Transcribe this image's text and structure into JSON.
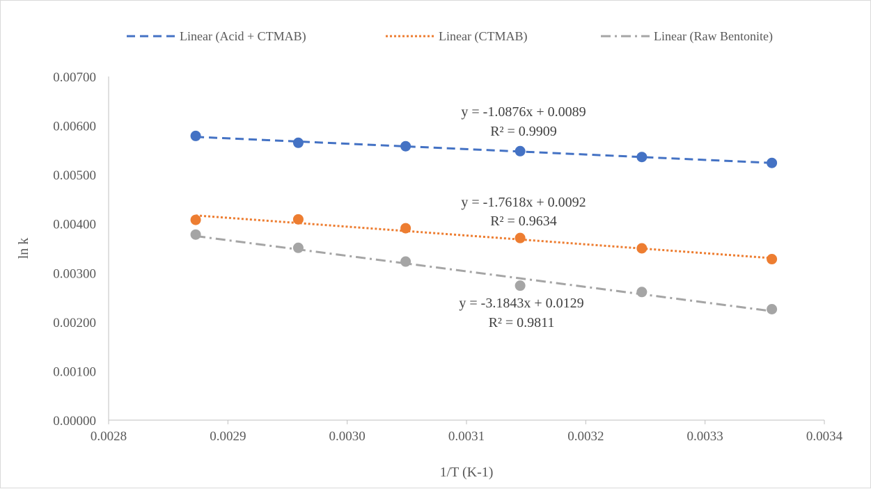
{
  "chart_data": {
    "type": "scatter",
    "title": "",
    "xlabel": "1/T (K-1)",
    "ylabel": "ln k",
    "xlim": [
      0.0028,
      0.0034
    ],
    "ylim": [
      0.0,
      0.007
    ],
    "x_ticks": [
      "0.0028",
      "0.0029",
      "0.0030",
      "0.0031",
      "0.0032",
      "0.0033",
      "0.0034"
    ],
    "y_ticks": [
      "0.00000",
      "0.00100",
      "0.00200",
      "0.00300",
      "0.00400",
      "0.00500",
      "0.00600",
      "0.00700"
    ],
    "grid": false,
    "legend_position": "top",
    "series": [
      {
        "legend": "Linear (Acid + CTMAB)",
        "color": "#4472c4",
        "line_style": "dashed",
        "x": [
          0.002873,
          0.002959,
          0.003049,
          0.003145,
          0.003247,
          0.003356
        ],
        "y": [
          0.00579,
          0.00565,
          0.00558,
          0.00548,
          0.00536,
          0.00524
        ],
        "trend_slope": -1.0876,
        "trend_intercept": 0.0089,
        "trend_x_range": [
          0.002873,
          0.003356
        ],
        "trend_y_range": [
          0.00577,
          0.00524
        ],
        "equation": "y = -1.0876x + 0.0089",
        "r_squared": "R² = 0.9909"
      },
      {
        "legend": "Linear (CTMAB)",
        "color": "#ed7d31",
        "line_style": "dotted",
        "x": [
          0.002873,
          0.002959,
          0.003049,
          0.003145,
          0.003247,
          0.003356
        ],
        "y": [
          0.00408,
          0.00409,
          0.00391,
          0.00371,
          0.0035,
          0.00328
        ],
        "trend_slope": -1.7618,
        "trend_intercept": 0.0092,
        "trend_x_range": [
          0.002873,
          0.003356
        ],
        "trend_y_range": [
          0.00417,
          0.0033
        ],
        "equation": "y = -1.7618x + 0.0092",
        "r_squared": "R² = 0.9634"
      },
      {
        "legend": "Linear (Raw Bentonite)",
        "color": "#a5a5a5",
        "line_style": "dash-dot",
        "x": [
          0.002873,
          0.002959,
          0.003049,
          0.003145,
          0.003247,
          0.003356
        ],
        "y": [
          0.00378,
          0.00351,
          0.00323,
          0.00274,
          0.00261,
          0.00226
        ],
        "trend_slope": -3.1843,
        "trend_intercept": 0.0129,
        "trend_x_range": [
          0.002873,
          0.003356
        ],
        "trend_y_range": [
          0.00375,
          0.00222
        ],
        "equation": "y = -3.1843x + 0.0129",
        "r_squared": "R² = 0.9811"
      }
    ]
  }
}
